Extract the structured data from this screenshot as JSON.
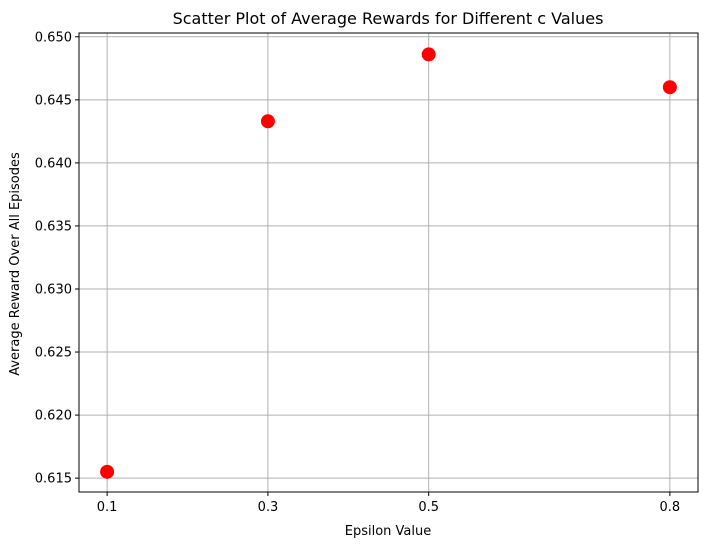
{
  "chart_data": {
    "type": "scatter",
    "title": "Scatter Plot of Average Rewards for Different c Values",
    "xlabel": "Epsilon Value",
    "ylabel": "Average Reward Over All Episodes",
    "x": [
      0.1,
      0.3,
      0.5,
      0.8
    ],
    "y": [
      0.6155,
      0.6433,
      0.6486,
      0.646
    ],
    "xticks": [
      0.1,
      0.3,
      0.5,
      0.8
    ],
    "xtick_labels": [
      "0.1",
      "0.3",
      "0.5",
      "0.8"
    ],
    "yticks": [
      0.615,
      0.62,
      0.625,
      0.63,
      0.635,
      0.64,
      0.645,
      0.65
    ],
    "ytick_labels": [
      "0.615",
      "0.620",
      "0.625",
      "0.630",
      "0.635",
      "0.640",
      "0.645",
      "0.650"
    ],
    "xlim": [
      0.065,
      0.835
    ],
    "ylim": [
      0.6139,
      0.6503
    ],
    "grid": true,
    "marker_color": "#ff0000"
  }
}
